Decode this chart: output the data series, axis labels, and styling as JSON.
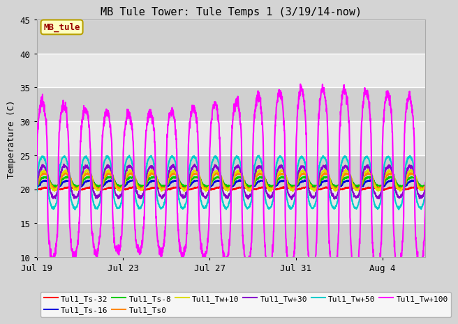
{
  "title": "MB Tule Tower: Tule Temps 1 (3/19/14-now)",
  "ylabel": "Temperature (C)",
  "ylim": [
    10,
    45
  ],
  "yticks": [
    10,
    15,
    20,
    25,
    30,
    35,
    40,
    45
  ],
  "xstart": 0,
  "xend": 18.0,
  "xtick_labels": [
    "Jul 19",
    "Jul 23",
    "Jul 27",
    "Jul 31",
    "Aug 4"
  ],
  "xtick_positions": [
    0,
    4,
    8,
    12,
    16
  ],
  "fig_bg": "#d4d4d4",
  "plot_bg": "#e8e8e8",
  "band_color": "#d0d0d0",
  "grid_color": "#ffffff",
  "legend_face": "#fffff0",
  "legend_edge": "#b8a000",
  "annotation_label": "MB_tule",
  "annotation_color": "#990000",
  "annotation_face": "#ffffc0",
  "annotation_edge": "#b8a000",
  "series_labels": [
    "Tul1_Ts-32",
    "Tul1_Ts-16",
    "Tul1_Ts-8",
    "Tul1_Ts0",
    "Tul1_Tw+10",
    "Tul1_Tw+30",
    "Tul1_Tw+50",
    "Tul1_Tw+100"
  ],
  "series_colors": [
    "#ff0000",
    "#0000dd",
    "#00cc00",
    "#ff8800",
    "#dddd00",
    "#8800cc",
    "#00cccc",
    "#ff00ff"
  ],
  "series_base": [
    20.1,
    20.8,
    21.1,
    21.2,
    21.3,
    21.1,
    21.0,
    21.0
  ],
  "series_amp": [
    0.15,
    0.45,
    0.65,
    1.1,
    1.4,
    2.3,
    3.8,
    12.0
  ],
  "series_phase": [
    0.5,
    0.42,
    0.38,
    0.35,
    0.33,
    0.3,
    0.27,
    0.25
  ],
  "series_lw": [
    1.5,
    1.5,
    1.5,
    1.5,
    1.5,
    1.5,
    1.5,
    1.5
  ]
}
